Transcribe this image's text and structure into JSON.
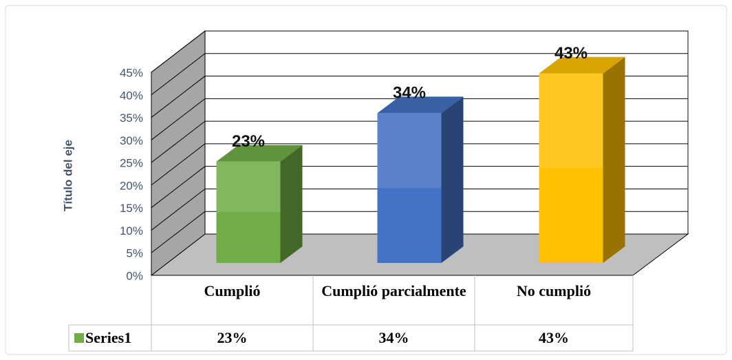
{
  "chart_data": {
    "type": "bar3d",
    "y_axis_title": "Título del eje",
    "categories": [
      "Cumplió",
      "Cumplió parcialmente",
      "No cumplió"
    ],
    "series": [
      {
        "name": "Series1",
        "values": [
          23,
          34,
          43
        ],
        "value_labels": [
          "23%",
          "34%",
          "43%"
        ],
        "colors": [
          "#70ad47",
          "#4472c4",
          "#ffc000"
        ]
      }
    ],
    "ylim": [
      0,
      45
    ],
    "yticks": [
      {
        "value": 0,
        "label": "0%"
      },
      {
        "value": 5,
        "label": "5%"
      },
      {
        "value": 10,
        "label": "10%"
      },
      {
        "value": 15,
        "label": "15%"
      },
      {
        "value": 20,
        "label": "20%"
      },
      {
        "value": 25,
        "label": "25%"
      },
      {
        "value": 30,
        "label": "30%"
      },
      {
        "value": 35,
        "label": "35%"
      },
      {
        "value": 40,
        "label": "40%"
      },
      {
        "value": 45,
        "label": "45%"
      }
    ],
    "grid": true
  }
}
